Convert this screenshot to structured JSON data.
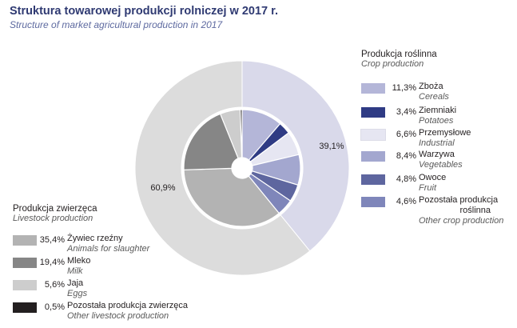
{
  "header": {
    "title": "Struktura towarowej produkcji rolniczej w 2017 r.",
    "subtitle": "Structure of market agricultural production in 2017"
  },
  "chart_data": {
    "type": "pie",
    "subtype": "nested-donut",
    "title": "Struktura towarowej produkcji rolniczej w 2017 r.",
    "subtitle": "Structure of market agricultural production in 2017",
    "unit": "%",
    "outer_ring": [
      {
        "name": "Produkcja roślinna",
        "value": 39.1,
        "label": "39,1%",
        "color": "#d9d9ea"
      },
      {
        "name": "Produkcja zwierzęca",
        "value": 60.9,
        "label": "60,9%",
        "color": "#dcdcdc"
      }
    ],
    "groups": [
      {
        "key": "crop",
        "name": "Produkcja roślinna",
        "name_en": "Crop production",
        "items": [
          {
            "name": "Zboża",
            "name_en": "Cereals",
            "value": 11.3,
            "label": "11,3%",
            "color": "#b4b6d8"
          },
          {
            "name": "Ziemniaki",
            "name_en": "Potatoes",
            "value": 3.4,
            "label": "3,4%",
            "color": "#2f3b84"
          },
          {
            "name": "Przemysłowe",
            "name_en": "Industrial",
            "value": 6.6,
            "label": "6,6%",
            "color": "#e6e6f2"
          },
          {
            "name": "Warzywa",
            "name_en": "Vegetables",
            "value": 8.4,
            "label": "8,4%",
            "color": "#a3a7cf"
          },
          {
            "name": "Owoce",
            "name_en": "Fruit",
            "value": 4.8,
            "label": "4,8%",
            "color": "#5e669f"
          },
          {
            "name": "Pozostała produkcja roślinna",
            "name_line1": "Pozostała produkcja",
            "name_line2": "roślinna",
            "name_en": "Other crop production",
            "value": 4.6,
            "label": "4,6%",
            "color": "#7f86ba"
          }
        ]
      },
      {
        "key": "livestock",
        "name": "Produkcja zwierzęca",
        "name_en": "Livestock production",
        "items": [
          {
            "name": "Żywiec rzeźny",
            "name_en": "Animals for slaughter",
            "value": 35.4,
            "label": "35,4%",
            "color": "#b3b3b3"
          },
          {
            "name": "Mleko",
            "name_en": "Milk",
            "value": 19.4,
            "label": "19,4%",
            "color": "#868686"
          },
          {
            "name": "Jaja",
            "name_en": "Eggs",
            "value": 5.6,
            "label": "5,6%",
            "color": "#cdcdcd"
          },
          {
            "name": "Pozostała produkcja zwierzęca",
            "name_en": "Other livestock production",
            "value": 0.5,
            "label": "0,5%",
            "color": "#231f20"
          }
        ]
      }
    ]
  }
}
